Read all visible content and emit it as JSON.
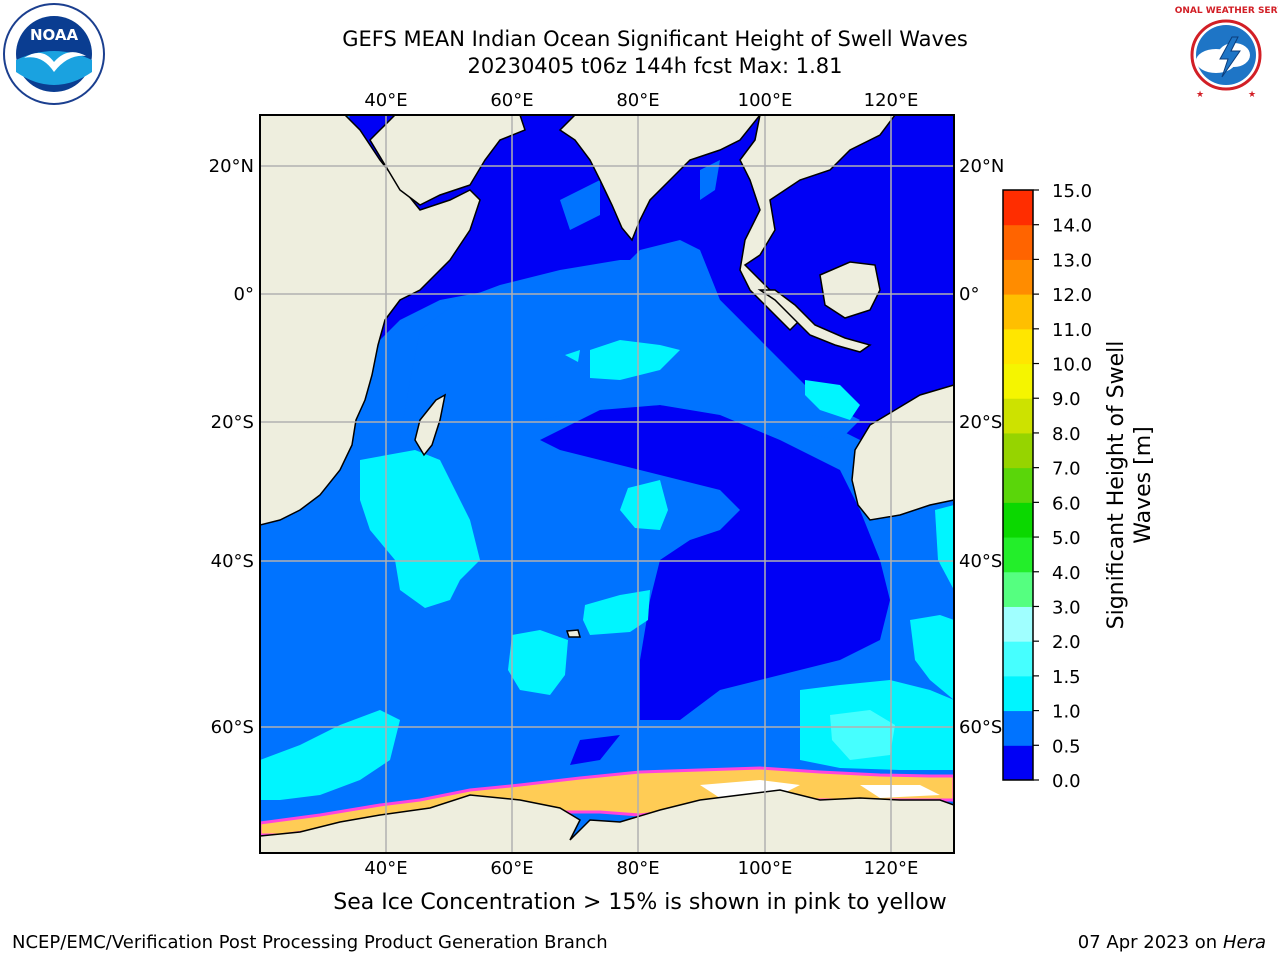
{
  "title": {
    "line1": "GEFS MEAN Indian Ocean Significant Height of Swell Waves",
    "line2": "20230405 t06z 144h fcst   Max: 1.81"
  },
  "logos": {
    "left": {
      "icon": "noaa-logo",
      "text": "NOAA"
    },
    "right": {
      "icon": "nws-logo",
      "text": "NATIONAL WEATHER SERVICE"
    }
  },
  "map": {
    "lon_labels": [
      "40°E",
      "60°E",
      "80°E",
      "100°E",
      "120°E"
    ],
    "lat_labels": [
      "20°N",
      "0°",
      "20°S",
      "40°S",
      "60°S"
    ],
    "colors": {
      "land": "#eeeede",
      "ocean_low": "#0000f5",
      "ocean_mid": "#0073ff",
      "ocean_high": "#00f5ff"
    }
  },
  "colorbar": {
    "title_line1": "Significant Height of Swell",
    "title_line2": "Waves [m]",
    "levels": [
      "0.0",
      "0.5",
      "1.0",
      "1.5",
      "2.0",
      "3.0",
      "4.0",
      "5.0",
      "6.0",
      "7.0",
      "8.0",
      "9.0",
      "10.0",
      "11.0",
      "12.0",
      "13.0",
      "14.0",
      "15.0"
    ],
    "colors": [
      "#0000f5",
      "#0073ff",
      "#00f5ff",
      "#46ffff",
      "#a0ffff",
      "#55ff80",
      "#23ee2a",
      "#0bd800",
      "#5ad60a",
      "#96d400",
      "#cde200",
      "#f5f500",
      "#ffe600",
      "#ffbf00",
      "#ff8c00",
      "#ff6400",
      "#ff2d00"
    ]
  },
  "note": "Sea Ice Concentration > 15% is shown in pink to yellow",
  "footer": {
    "left": "NCEP/EMC/Verification Post Processing Product Generation Branch",
    "right_prefix": "07 Apr 2023 on ",
    "right_machine": "Hera"
  }
}
